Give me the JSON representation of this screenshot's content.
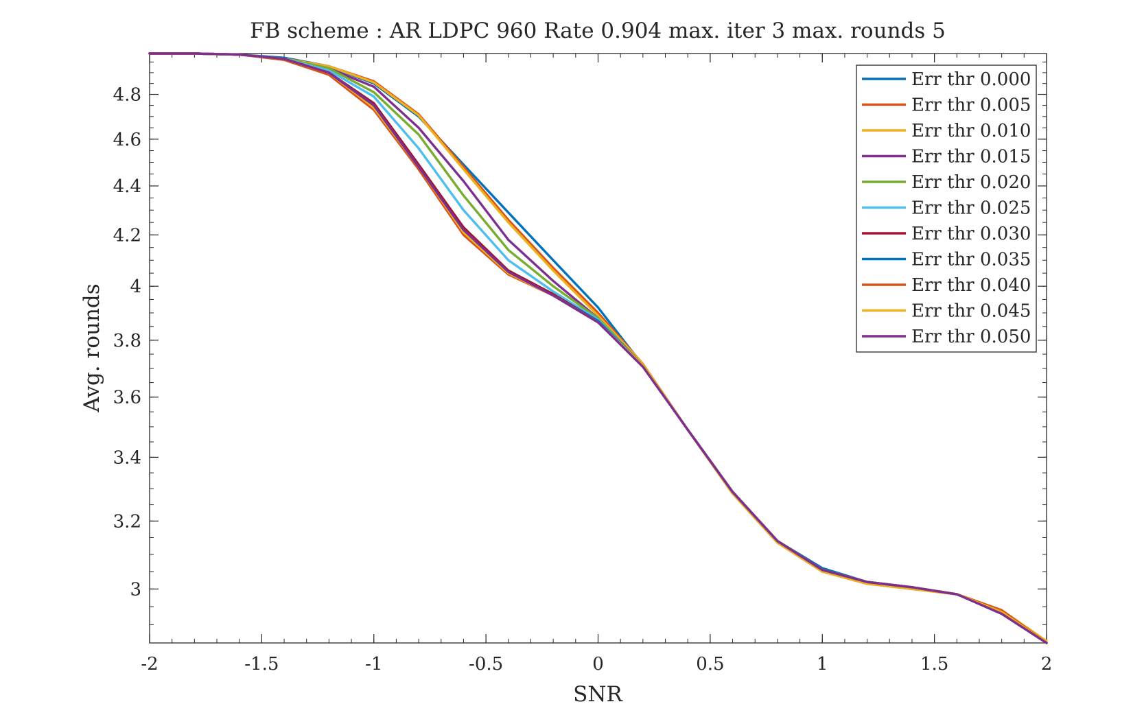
{
  "chart_data": {
    "type": "line",
    "title": "FB scheme : AR LDPC 960 Rate 0.904 max. iter 3 max. rounds 5",
    "xlabel": "SNR",
    "ylabel": "Avg. rounds",
    "xlim": [
      -2,
      2
    ],
    "ylim": [
      2.85,
      4.99
    ],
    "y_scale": "log",
    "x_ticks": [
      -2,
      -1.5,
      -1,
      -0.5,
      0,
      0.5,
      1,
      1.5,
      2
    ],
    "x_tick_labels": [
      "-2",
      "-1.5",
      "-1",
      "-0.5",
      "0",
      "0.5",
      "1",
      "1.5",
      "2"
    ],
    "y_ticks": [
      3,
      3.2,
      3.4,
      3.6,
      3.8,
      4,
      4.2,
      4.4,
      4.6,
      4.8
    ],
    "y_tick_labels": [
      "3",
      "3.2",
      "3.4",
      "3.6",
      "3.8",
      "4",
      "4.2",
      "4.4",
      "4.6",
      "4.8"
    ],
    "grid": false,
    "legend_position": "top-right",
    "x": [
      -2,
      -1.8,
      -1.6,
      -1.4,
      -1.2,
      -1,
      -0.8,
      -0.6,
      -0.4,
      -0.2,
      0,
      0.2,
      0.4,
      0.6,
      0.8,
      1,
      1.2,
      1.4,
      1.6,
      1.8,
      2
    ],
    "series": [
      {
        "name": "Err thr 0.000",
        "color": "#0072BD",
        "values": [
          4.99,
          4.99,
          4.985,
          4.97,
          4.93,
          4.85,
          4.7,
          4.49,
          4.29,
          4.1,
          3.92,
          3.71,
          3.49,
          3.29,
          3.14,
          3.06,
          3.02,
          3.005,
          2.985,
          2.93,
          2.85
        ]
      },
      {
        "name": "Err thr 0.005",
        "color": "#D95319",
        "values": [
          4.99,
          4.99,
          4.985,
          4.965,
          4.93,
          4.86,
          4.71,
          4.48,
          4.26,
          4.07,
          3.9,
          3.715,
          3.49,
          3.285,
          3.135,
          3.05,
          3.015,
          3.0,
          2.985,
          2.94,
          2.85
        ]
      },
      {
        "name": "Err thr 0.010",
        "color": "#EDB120",
        "values": [
          4.99,
          4.99,
          4.985,
          4.965,
          4.93,
          4.855,
          4.705,
          4.47,
          4.25,
          4.06,
          3.89,
          3.715,
          3.49,
          3.285,
          3.135,
          3.05,
          3.015,
          3.0,
          2.985,
          2.94,
          2.855
        ]
      },
      {
        "name": "Err thr 0.015",
        "color": "#7E2F8E",
        "values": [
          4.99,
          4.99,
          4.985,
          4.965,
          4.92,
          4.835,
          4.65,
          4.42,
          4.18,
          4.02,
          3.88,
          3.71,
          3.49,
          3.29,
          3.14,
          3.055,
          3.02,
          3.005,
          2.985,
          2.935,
          2.85
        ]
      },
      {
        "name": "Err thr 0.020",
        "color": "#77AC30",
        "values": [
          4.99,
          4.99,
          4.985,
          4.965,
          4.92,
          4.81,
          4.62,
          4.36,
          4.14,
          4.0,
          3.88,
          3.71,
          3.49,
          3.29,
          3.14,
          3.055,
          3.02,
          3.005,
          2.985,
          2.935,
          2.85
        ]
      },
      {
        "name": "Err thr 0.025",
        "color": "#4DBEEE",
        "values": [
          4.99,
          4.99,
          4.985,
          4.965,
          4.91,
          4.79,
          4.56,
          4.3,
          4.1,
          3.98,
          3.875,
          3.71,
          3.49,
          3.29,
          3.14,
          3.055,
          3.02,
          3.005,
          2.985,
          2.935,
          2.85
        ]
      },
      {
        "name": "Err thr 0.030",
        "color": "#A2142F",
        "values": [
          4.99,
          4.99,
          4.985,
          4.965,
          4.9,
          4.76,
          4.49,
          4.23,
          4.06,
          3.97,
          3.87,
          3.71,
          3.49,
          3.29,
          3.14,
          3.055,
          3.02,
          3.005,
          2.985,
          2.935,
          2.85
        ]
      },
      {
        "name": "Err thr 0.035",
        "color": "#0072BD",
        "values": [
          4.99,
          4.99,
          4.985,
          4.965,
          4.9,
          4.75,
          4.48,
          4.21,
          4.05,
          3.965,
          3.87,
          3.71,
          3.49,
          3.29,
          3.14,
          3.055,
          3.02,
          3.005,
          2.985,
          2.935,
          2.85
        ]
      },
      {
        "name": "Err thr 0.040",
        "color": "#D95319",
        "values": [
          4.99,
          4.99,
          4.985,
          4.96,
          4.89,
          4.73,
          4.47,
          4.2,
          4.045,
          3.965,
          3.865,
          3.71,
          3.49,
          3.29,
          3.14,
          3.055,
          3.02,
          3.005,
          2.985,
          2.94,
          2.85
        ]
      },
      {
        "name": "Err thr 0.045",
        "color": "#EDB120",
        "values": [
          4.99,
          4.99,
          4.985,
          4.965,
          4.9,
          4.74,
          4.48,
          4.21,
          4.05,
          3.965,
          3.865,
          3.71,
          3.49,
          3.29,
          3.14,
          3.055,
          3.02,
          3.005,
          2.985,
          2.935,
          2.85
        ]
      },
      {
        "name": "Err thr 0.050",
        "color": "#7E2F8E",
        "values": [
          4.99,
          4.99,
          4.985,
          4.965,
          4.9,
          4.75,
          4.48,
          4.22,
          4.055,
          3.965,
          3.865,
          3.705,
          3.49,
          3.29,
          3.14,
          3.055,
          3.02,
          3.005,
          2.985,
          2.93,
          2.85
        ]
      }
    ]
  }
}
